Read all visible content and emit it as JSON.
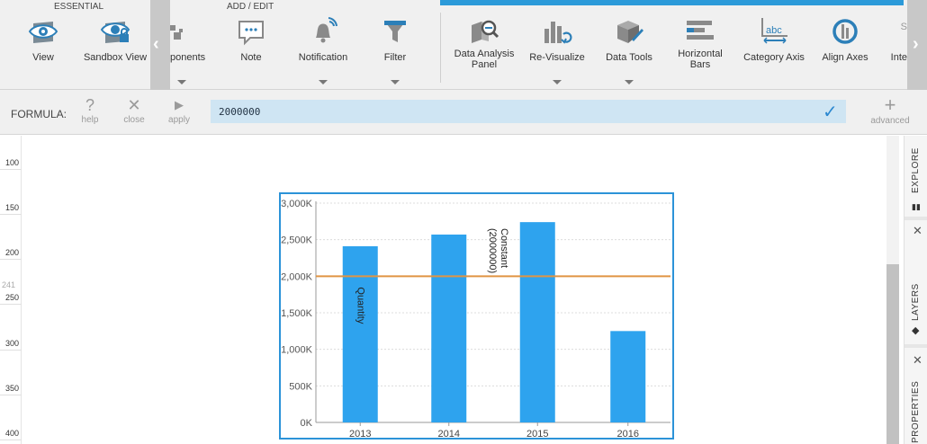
{
  "toolbar": {
    "groups": {
      "essential": "ESSENTIAL",
      "add_edit": "ADD / EDIT"
    },
    "buttons": {
      "view": "View",
      "sandbox_view": "Sandbox View",
      "components": "ponents",
      "note": "Note",
      "notification": "Notification",
      "filter": "Filter",
      "data_analysis_panel_1": "Data Analysis",
      "data_analysis_panel_2": "Panel",
      "revisualize": "Re-Visualize",
      "data_tools": "Data Tools",
      "horizontal_bars_1": "Horizontal",
      "horizontal_bars_2": "Bars",
      "category_axis": "Category Axis",
      "align_axes": "Align Axes",
      "partial_1": "S",
      "partial_2": "Inte"
    },
    "accent": "#2c9ad9"
  },
  "formula": {
    "label": "FORMULA:",
    "help": "help",
    "close": "close",
    "apply": "apply",
    "value": "2000000",
    "advanced": "advanced"
  },
  "ruler": {
    "ticks": [
      "100",
      "150",
      "200",
      "250",
      "300",
      "350",
      "400"
    ],
    "marker": "241"
  },
  "right_panel": {
    "explore": "EXPLORE",
    "layers": "LAYERS",
    "properties": "PROPERTIES"
  },
  "chart_data": {
    "type": "bar",
    "categories": [
      "2013",
      "2014",
      "2015",
      "2016"
    ],
    "series": [
      {
        "name": "Quantity",
        "values": [
          2410000,
          2570000,
          2740000,
          1250000
        ],
        "color": "#2ea3ee"
      }
    ],
    "reference_line": {
      "label": "Constant",
      "sublabel": "(2000000)",
      "value": 2000000,
      "color": "#e09444"
    },
    "y_ticks": [
      "0K",
      "500K",
      "1,000K",
      "1,500K",
      "2,000K",
      "2,500K",
      "3,000K"
    ],
    "ylim": [
      0,
      3000000
    ],
    "grid": true
  }
}
